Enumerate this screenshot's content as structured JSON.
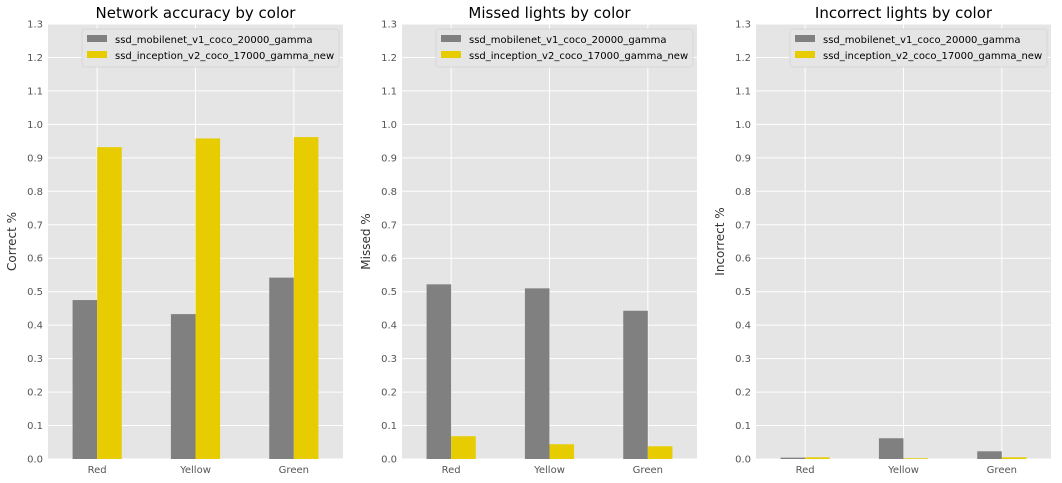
{
  "colors": {
    "background": "#E5E5E5",
    "grid": "#FFFFFF",
    "tick_text": "#555555",
    "label_text": "#333333",
    "title_text": "#000000"
  },
  "chart_data": [
    {
      "type": "bar",
      "title": "Network accuracy by color",
      "xlabel": "",
      "ylabel": "Correct %",
      "ylim": [
        0,
        1.3
      ],
      "yticks": [
        "0.0",
        "0.1",
        "0.2",
        "0.3",
        "0.4",
        "0.5",
        "0.6",
        "0.7",
        "0.8",
        "0.9",
        "1.0",
        "1.1",
        "1.2",
        "1.3"
      ],
      "grid": true,
      "legend_position": "top-right",
      "categories": [
        "Red",
        "Yellow",
        "Green"
      ],
      "series": [
        {
          "name": "ssd_mobilenet_v1_coco_20000_gamma",
          "color": "#808080",
          "values": [
            0.475,
            0.433,
            0.542
          ]
        },
        {
          "name": "ssd_inception_v2_coco_17000_gamma_new",
          "color": "#E6CC00",
          "values": [
            0.932,
            0.958,
            0.962
          ]
        }
      ]
    },
    {
      "type": "bar",
      "title": "Missed lights by color",
      "xlabel": "",
      "ylabel": "Missed %",
      "ylim": [
        0,
        1.3
      ],
      "yticks": [
        "0.0",
        "0.1",
        "0.2",
        "0.3",
        "0.4",
        "0.5",
        "0.6",
        "0.7",
        "0.8",
        "0.9",
        "1.0",
        "1.1",
        "1.2",
        "1.3"
      ],
      "grid": true,
      "legend_position": "top-right",
      "categories": [
        "Red",
        "Yellow",
        "Green"
      ],
      "series": [
        {
          "name": "ssd_mobilenet_v1_coco_20000_gamma",
          "color": "#808080",
          "values": [
            0.522,
            0.51,
            0.443
          ]
        },
        {
          "name": "ssd_inception_v2_coco_17000_gamma_new",
          "color": "#E6CC00",
          "values": [
            0.068,
            0.044,
            0.038
          ]
        }
      ]
    },
    {
      "type": "bar",
      "title": "Incorrect lights by color",
      "xlabel": "",
      "ylabel": "Incorrect %",
      "ylim": [
        0,
        1.3
      ],
      "yticks": [
        "0.0",
        "0.1",
        "0.2",
        "0.3",
        "0.4",
        "0.5",
        "0.6",
        "0.7",
        "0.8",
        "0.9",
        "1.0",
        "1.1",
        "1.2",
        "1.3"
      ],
      "grid": true,
      "legend_position": "top-right",
      "categories": [
        "Red",
        "Yellow",
        "Green"
      ],
      "series": [
        {
          "name": "ssd_mobilenet_v1_coco_20000_gamma",
          "color": "#808080",
          "values": [
            0.004,
            0.062,
            0.023
          ]
        },
        {
          "name": "ssd_inception_v2_coco_17000_gamma_new",
          "color": "#E6CC00",
          "values": [
            0.005,
            0.002,
            0.005
          ]
        }
      ]
    }
  ]
}
